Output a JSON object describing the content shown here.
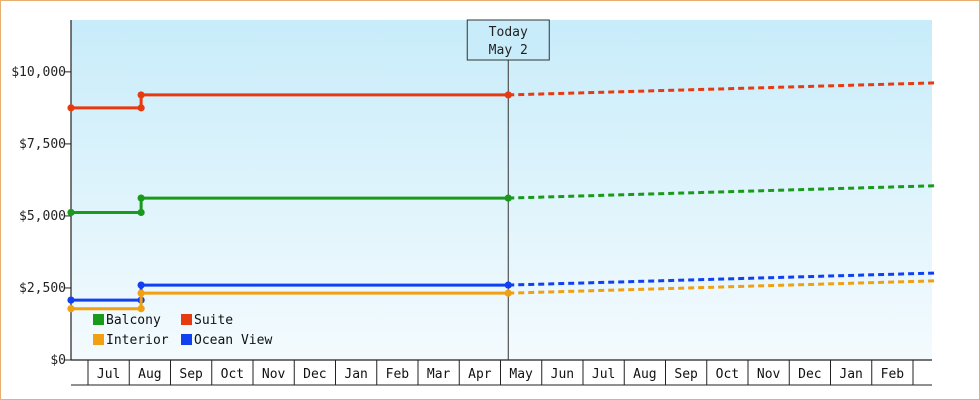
{
  "chart_data": {
    "type": "line",
    "y_ticks": [
      "$0",
      "$2,500",
      "$5,000",
      "$7,500",
      "$10,000"
    ],
    "y_tick_values": [
      0,
      2500,
      5000,
      7500,
      10000
    ],
    "ylim": [
      0,
      11800
    ],
    "months": [
      "",
      "Jul",
      "Aug",
      "Sep",
      "Oct",
      "Nov",
      "Dec",
      "Jan",
      "Feb",
      "Mar",
      "Apr",
      "May",
      "Jun",
      "Jul",
      "Aug",
      "Sep",
      "Oct",
      "Nov",
      "Dec",
      "Jan",
      "Feb",
      ""
    ],
    "today_label_line1": "Today",
    "today_label_line2": "May 2",
    "today_month_position": 10.6,
    "series": [
      {
        "name": "Suite",
        "color": "#e83a10",
        "history": [
          [
            0,
            8750
          ],
          [
            1.7,
            8750
          ],
          [
            1.7,
            9200
          ],
          [
            10.6,
            9200
          ]
        ],
        "forecast": [
          [
            10.6,
            9200
          ],
          [
            21,
            9620
          ]
        ]
      },
      {
        "name": "Balcony",
        "color": "#1a9a1a",
        "history": [
          [
            0,
            5120
          ],
          [
            1.7,
            5120
          ],
          [
            1.7,
            5620
          ],
          [
            10.6,
            5620
          ]
        ],
        "forecast": [
          [
            10.6,
            5620
          ],
          [
            21,
            6050
          ]
        ]
      },
      {
        "name": "Ocean View",
        "color": "#1040f0",
        "history": [
          [
            0,
            2080
          ],
          [
            1.7,
            2080
          ],
          [
            1.7,
            2600
          ],
          [
            10.6,
            2600
          ]
        ],
        "forecast": [
          [
            10.6,
            2600
          ],
          [
            21,
            3020
          ]
        ]
      },
      {
        "name": "Interior",
        "color": "#f0a010",
        "history": [
          [
            0,
            1780
          ],
          [
            1.7,
            1780
          ],
          [
            1.7,
            2320
          ],
          [
            10.6,
            2320
          ]
        ],
        "forecast": [
          [
            10.6,
            2320
          ],
          [
            21,
            2750
          ]
        ]
      }
    ],
    "legend": [
      {
        "label": "Balcony",
        "color": "#1a9a1a"
      },
      {
        "label": "Suite",
        "color": "#e83a10"
      },
      {
        "label": "Interior",
        "color": "#f0a010"
      },
      {
        "label": "Ocean View",
        "color": "#1040f0"
      }
    ],
    "legend_placement": "bottom-left",
    "grid": false
  }
}
